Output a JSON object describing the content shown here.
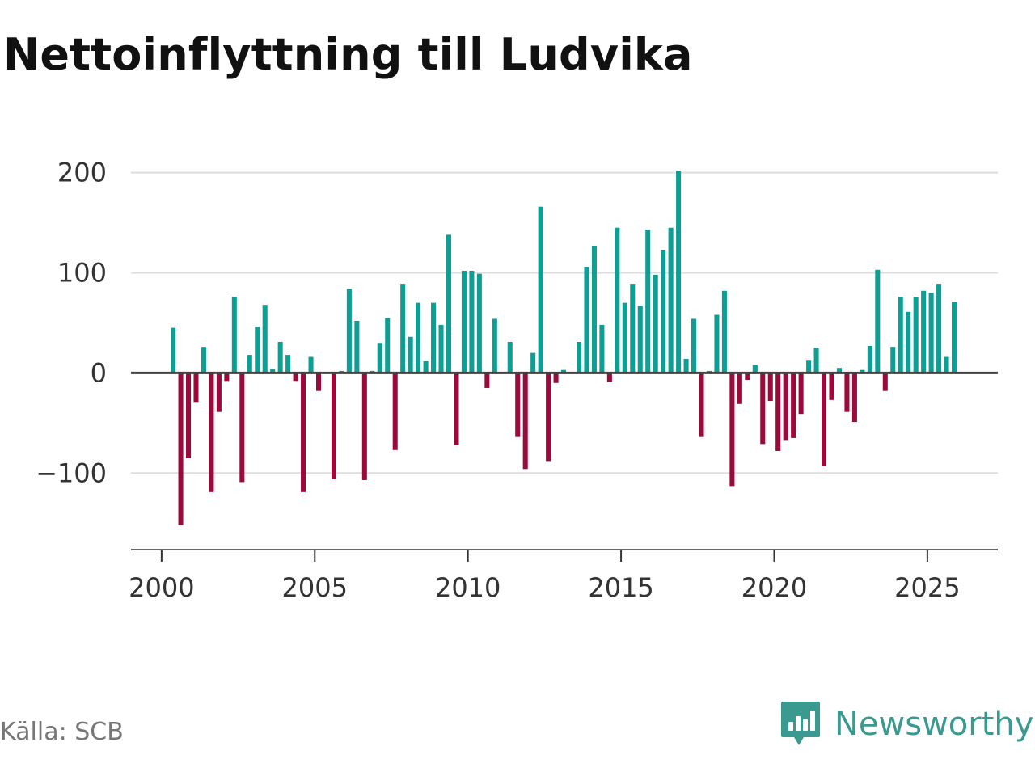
{
  "chart_data": {
    "type": "bar",
    "title": "Nettoinflyttning till Ludvika",
    "xlabel": "",
    "ylabel": "",
    "x_ticks": [
      "2000",
      "2005",
      "2010",
      "2015",
      "2020",
      "2025"
    ],
    "y_ticks": [
      "200",
      "100",
      "0",
      "−100"
    ],
    "x_tick_values": [
      2000,
      2005,
      2010,
      2015,
      2020,
      2025
    ],
    "y_tick_values": [
      200,
      100,
      0,
      -100
    ],
    "xlim": [
      1999,
      2027.3
    ],
    "ylim": [
      -170,
      215
    ],
    "bar_step": 0.25,
    "x_start": 2000.375,
    "grid": true,
    "colors": {
      "positive": "#0e9e94",
      "negative": "#9c0a3c",
      "grid": "#dddddd",
      "baseline": "#444444",
      "axis": "#333333"
    },
    "values": [
      45,
      -152,
      -85,
      -29,
      26,
      -119,
      -39,
      -8,
      76,
      -109,
      18,
      46,
      68,
      4,
      31,
      18,
      -8,
      -119,
      16,
      -18,
      0,
      -106,
      2,
      84,
      52,
      -107,
      2,
      30,
      55,
      -77,
      89,
      36,
      70,
      12,
      70,
      48,
      138,
      -72,
      102,
      102,
      99,
      -15,
      54,
      0,
      31,
      -64,
      -96,
      20,
      166,
      -88,
      -10,
      3,
      0,
      31,
      106,
      127,
      48,
      -9,
      145,
      70,
      89,
      67,
      143,
      98,
      123,
      145,
      202,
      14,
      54,
      -64,
      2,
      58,
      82,
      -113,
      -31,
      -7,
      8,
      -71,
      -28,
      -78,
      -67,
      -65,
      -41,
      13,
      25,
      -93,
      -27,
      5,
      -39,
      -49,
      3,
      27,
      103,
      -18,
      26,
      76,
      61,
      76,
      82,
      80,
      89,
      16,
      71
    ]
  },
  "footer": {
    "source": "Källa: SCB",
    "brand": "Newsworthy",
    "brand_color": "#3a9a8f"
  }
}
